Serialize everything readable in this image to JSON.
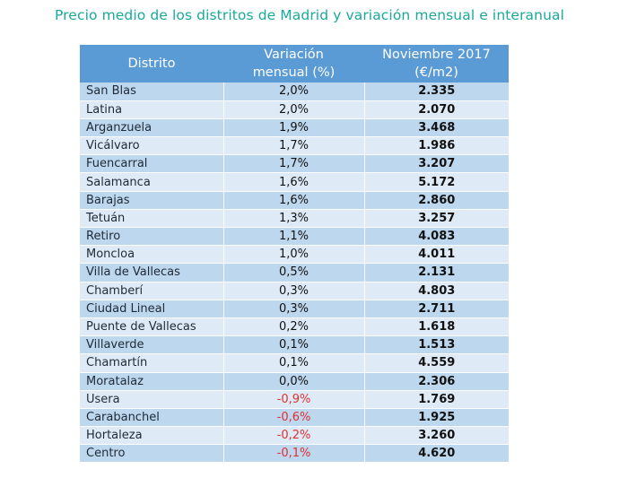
{
  "title": "Precio medio de los distritos de Madrid y variación mensual e interanual",
  "colors": {
    "title": "#1aa89a",
    "header_bg": "#5b9bd5",
    "row_dark": "#bdd7ee",
    "row_light": "#deebf7",
    "negative": "#e03030"
  },
  "table": {
    "headers": {
      "district": "Distrito",
      "variation_line1": "Variación",
      "variation_line2": "mensual (%)",
      "price_line1": "Noviembre 2017",
      "price_line2": "(€/m2)"
    },
    "rows": [
      {
        "district": "San Blas",
        "variation": "2,0%",
        "price": "2.335",
        "negative": false
      },
      {
        "district": "Latina",
        "variation": "2,0%",
        "price": "2.070",
        "negative": false
      },
      {
        "district": "Arganzuela",
        "variation": "1,9%",
        "price": "3.468",
        "negative": false
      },
      {
        "district": "Vicálvaro",
        "variation": "1,7%",
        "price": "1.986",
        "negative": false
      },
      {
        "district": "Fuencarral",
        "variation": "1,7%",
        "price": "3.207",
        "negative": false
      },
      {
        "district": "Salamanca",
        "variation": "1,6%",
        "price": "5.172",
        "negative": false
      },
      {
        "district": "Barajas",
        "variation": "1,6%",
        "price": "2.860",
        "negative": false
      },
      {
        "district": "Tetuán",
        "variation": "1,3%",
        "price": "3.257",
        "negative": false
      },
      {
        "district": "Retiro",
        "variation": "1,1%",
        "price": "4.083",
        "negative": false
      },
      {
        "district": "Moncloa",
        "variation": "1,0%",
        "price": "4.011",
        "negative": false
      },
      {
        "district": "Villa de Vallecas",
        "variation": "0,5%",
        "price": "2.131",
        "negative": false
      },
      {
        "district": "Chamberí",
        "variation": "0,3%",
        "price": "4.803",
        "negative": false
      },
      {
        "district": "Ciudad Lineal",
        "variation": "0,3%",
        "price": "2.711",
        "negative": false
      },
      {
        "district": "Puente de Vallecas",
        "variation": "0,2%",
        "price": "1.618",
        "negative": false
      },
      {
        "district": "Villaverde",
        "variation": "0,1%",
        "price": "1.513",
        "negative": false
      },
      {
        "district": "Chamartín",
        "variation": "0,1%",
        "price": "4.559",
        "negative": false
      },
      {
        "district": "Moratalaz",
        "variation": "0,0%",
        "price": "2.306",
        "negative": false
      },
      {
        "district": "Usera",
        "variation": "-0,9%",
        "price": "1.769",
        "negative": true
      },
      {
        "district": "Carabanchel",
        "variation": "-0,6%",
        "price": "1.925",
        "negative": true
      },
      {
        "district": "Hortaleza",
        "variation": "-0,2%",
        "price": "3.260",
        "negative": true
      },
      {
        "district": "Centro",
        "variation": "-0,1%",
        "price": "4.620",
        "negative": true
      }
    ]
  }
}
